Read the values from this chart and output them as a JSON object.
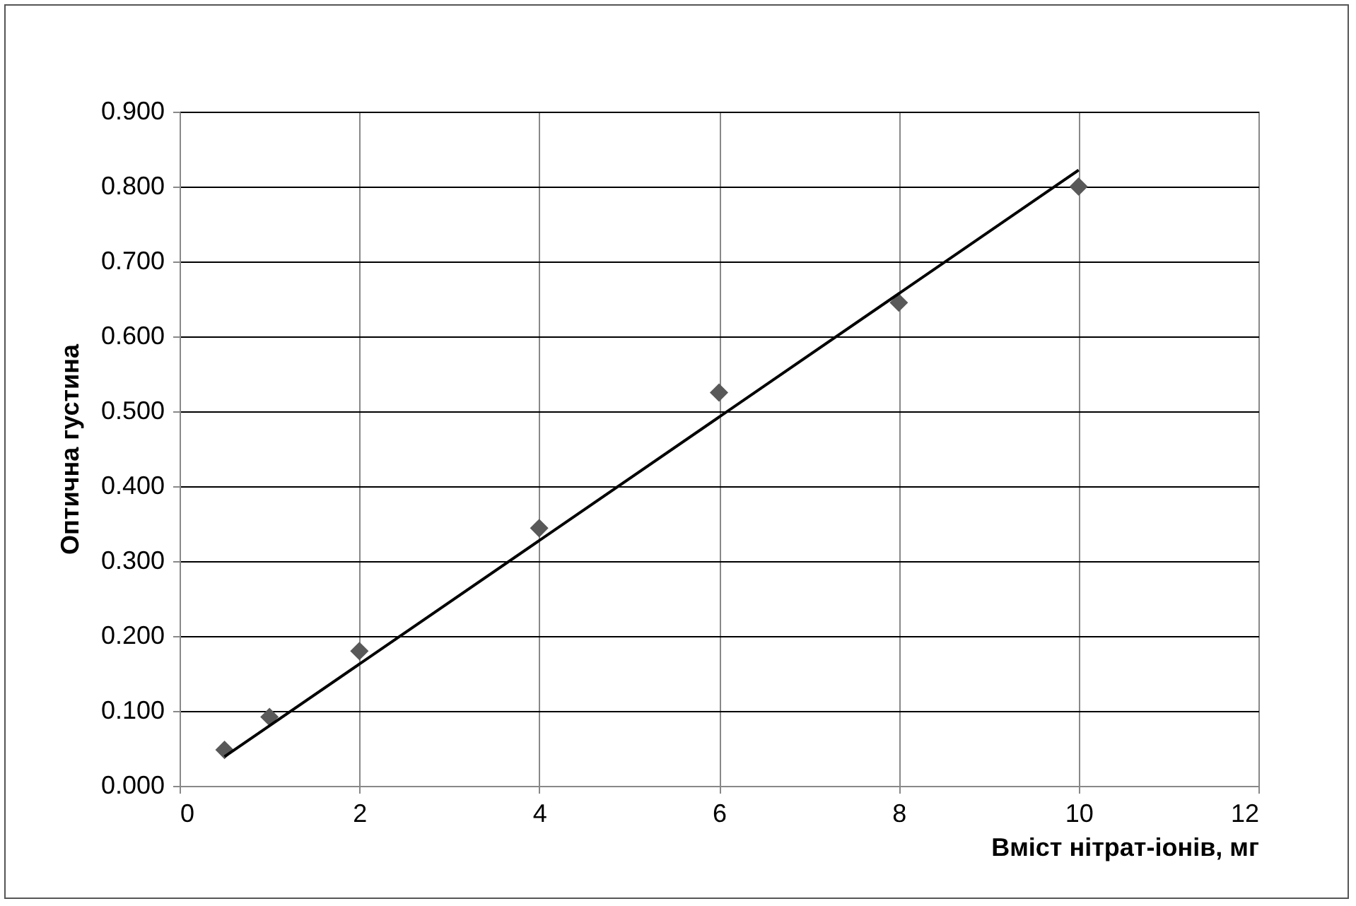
{
  "chart_data": {
    "type": "scatter",
    "xlabel": "Вміст нітрат-іонів, мг",
    "ylabel": "Оптична густина",
    "xlim": [
      0,
      12
    ],
    "xticks": [
      0,
      2,
      4,
      6,
      8,
      10,
      12
    ],
    "ylim": [
      0,
      0.9
    ],
    "yticks": [
      {
        "value": 0,
        "label": "0.000"
      },
      {
        "value": 0.1,
        "label": "0.100"
      },
      {
        "value": 0.2,
        "label": "0.200"
      },
      {
        "value": 0.3,
        "label": "0.300"
      },
      {
        "value": 0.4,
        "label": "0.400"
      },
      {
        "value": 0.5,
        "label": "0.500"
      },
      {
        "value": 0.6,
        "label": "0.600"
      },
      {
        "value": 0.7,
        "label": "0.700"
      },
      {
        "value": 0.8,
        "label": "0.800"
      },
      {
        "value": 0.9,
        "label": "0.900"
      }
    ],
    "grid": true,
    "series": [
      {
        "marker": "diamond",
        "color": "#595959",
        "x": [
          0.5,
          1,
          2,
          4,
          6,
          8,
          10
        ],
        "values": [
          0.048,
          0.092,
          0.18,
          0.344,
          0.525,
          0.645,
          0.8
        ]
      },
      {
        "type": "line",
        "color": "#000000",
        "x": [
          0.5,
          10
        ],
        "values": [
          0.039,
          0.822
        ]
      }
    ]
  }
}
